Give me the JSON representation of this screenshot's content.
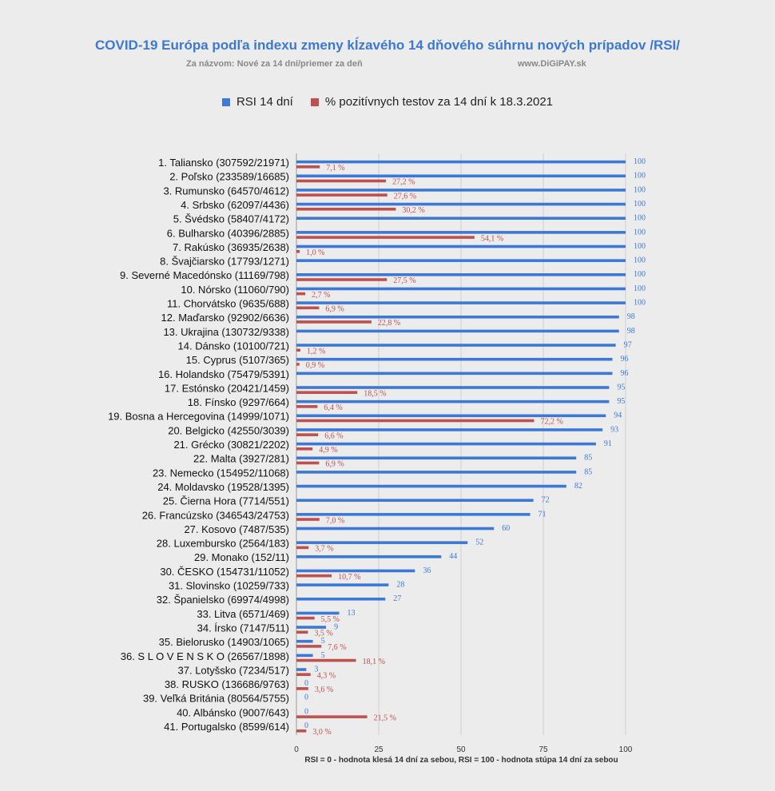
{
  "header": {
    "title": "COVID-19 Európa podľa indexu zmeny  kĺzavého 14 dňového súhrnu nových prípadov /RSI/",
    "subtitle_left": "Za názvom: Nové za 14 dní/priemer za deň",
    "subtitle_right": "www.DiGiPAY.sk"
  },
  "legend": {
    "rsi_label": "RSI 14 dní",
    "pos_label": "% pozitívnych testov za 14 dní k 18.3.2021"
  },
  "footnote": "RSI = 0 - hodnota klesá 14 dní za sebou, RSI = 100 - hodnota stúpa 14 dní za sebou",
  "colors": {
    "rsi": "#3c78d8",
    "positive": "#c0504d"
  },
  "chart_data": {
    "type": "bar",
    "orientation": "horizontal",
    "xlim": [
      0,
      100
    ],
    "x_ticks": [
      "0",
      "25",
      "50",
      "75",
      "100"
    ],
    "grid": true,
    "legend_position": "top",
    "categories": [
      "1. Taliansko (307592/21971)",
      "2. Poľsko (233589/16685)",
      "3. Rumunsko (64570/4612)",
      "4. Srbsko (62097/4436)",
      "5. Švédsko (58407/4172)",
      "6. Bulharsko (40396/2885)",
      "7. Rakúsko (36935/2638)",
      "8. Švajčiarsko (17793/1271)",
      "9. Severné Macedónsko (11169/798)",
      "10. Nórsko (11060/790)",
      "11. Chorvátsko (9635/688)",
      "12. Maďarsko (92902/6636)",
      "13. Ukrajina (130732/9338)",
      "14. Dánsko (10100/721)",
      "15. Cyprus (5107/365)",
      "16. Holandsko (75479/5391)",
      "17. Estónsko (20421/1459)",
      "18. Fínsko (9297/664)",
      "19. Bosna a Hercegovina (14999/1071)",
      "20. Belgicko (42550/3039)",
      "21. Grécko (30821/2202)",
      "22. Malta (3927/281)",
      "23. Nemecko (154952/11068)",
      "24. Moldavsko (19528/1395)",
      "25. Čierna Hora (7714/551)",
      "26. Francúzsko (346543/24753)",
      "27. Kosovo (7487/535)",
      "28. Luxembursko (2564/183)",
      "29. Monako (152/11)",
      "30. ČESKO (154731/11052)",
      "31. Slovinsko (10259/733)",
      "32. Španielsko (69974/4998)",
      "33. Litva (6571/469)",
      "34. Írsko (7147/511)",
      "35. Bielorusko (14903/1065)",
      "36.  S L O V E N S K O (26567/1898)",
      "37. Lotyšsko (7234/517)",
      "38. RUSKO (136686/9763)",
      "39. Veľká Británia (80564/5755)",
      "40. Albánsko (9007/643)",
      "41. Portugalsko (8599/614)"
    ],
    "series": [
      {
        "name": "RSI 14 dní",
        "values": [
          100,
          100,
          100,
          100,
          100,
          100,
          100,
          100,
          100,
          100,
          100,
          98,
          98,
          97,
          96,
          96,
          95,
          95,
          94,
          93,
          91,
          85,
          85,
          82,
          72,
          71,
          60,
          52,
          44,
          36,
          28,
          27,
          13,
          9,
          5,
          5,
          3,
          0,
          0,
          0,
          0
        ],
        "labels": [
          "100",
          "100",
          "100",
          "100",
          "100",
          "100",
          "100",
          "100",
          "100",
          "100",
          "100",
          "98",
          "98",
          "97",
          "96",
          "96",
          "95",
          "95",
          "94",
          "93",
          "91",
          "85",
          "85",
          "82",
          "72",
          "71",
          "60",
          "52",
          "44",
          "36",
          "28",
          "27",
          "13",
          "9",
          "5",
          "5",
          "3",
          "0",
          "0",
          "0",
          "0"
        ]
      },
      {
        "name": "% pozitívnych testov za 14 dní k 18.3.2021",
        "values": [
          7.1,
          27.2,
          27.6,
          30.2,
          null,
          54.1,
          1.0,
          null,
          27.5,
          2.7,
          6.9,
          22.8,
          null,
          1.2,
          0.9,
          null,
          18.5,
          6.4,
          72.2,
          6.6,
          4.9,
          6.9,
          null,
          null,
          null,
          7.0,
          null,
          3.7,
          null,
          10.7,
          null,
          null,
          5.5,
          3.5,
          7.6,
          18.1,
          4.3,
          3.6,
          null,
          21.5,
          3.0
        ],
        "labels": [
          "7,1 %",
          "27,2 %",
          "27,6 %",
          "30,2 %",
          "",
          "54,1 %",
          "1,0 %",
          "",
          "27,5 %",
          "2,7 %",
          "6,9 %",
          "22,8 %",
          "",
          "1,2 %",
          "0,9 %",
          "",
          "18,5 %",
          "6,4 %",
          "72,2 %",
          "6,6 %",
          "4,9 %",
          "6,9 %",
          "",
          "",
          "",
          "7,0 %",
          "",
          "3,7 %",
          "",
          "10,7 %",
          "",
          "",
          "5,5 %",
          "3,5 %",
          "7,6 %",
          "18,1 %",
          "4,3 %",
          "3,6 %",
          "",
          "21,5 %",
          "3,0 %"
        ]
      }
    ]
  }
}
